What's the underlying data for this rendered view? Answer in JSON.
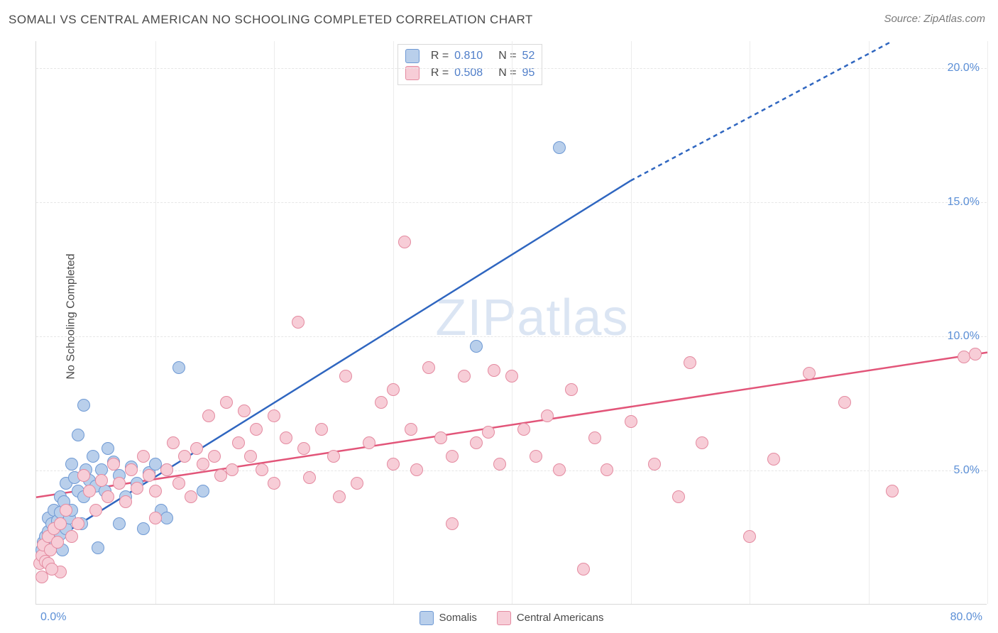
{
  "title": "SOMALI VS CENTRAL AMERICAN NO SCHOOLING COMPLETED CORRELATION CHART",
  "source_label": "Source: ZipAtlas.com",
  "y_axis_label": "No Schooling Completed",
  "watermark": "ZIPatlas",
  "chart": {
    "type": "scatter",
    "background_color": "#ffffff",
    "grid_color": "#e6e6e6",
    "axis_color": "#d9d9d9",
    "tick_label_color": "#5b8fd6",
    "xlim": [
      0,
      80
    ],
    "ylim": [
      0,
      21
    ],
    "x_ticks": {
      "positions": [
        0,
        10,
        20,
        30,
        40,
        50,
        60,
        70,
        80
      ],
      "labels": {
        "first": "0.0%",
        "last": "80.0%"
      }
    },
    "y_ticks": {
      "positions": [
        5,
        10,
        15,
        20
      ],
      "labels": [
        "5.0%",
        "10.0%",
        "15.0%",
        "20.0%"
      ]
    },
    "marker_radius": 9,
    "marker_border_width": 1.2,
    "line_width": 2.5,
    "series": [
      {
        "name": "Somalis",
        "fill_color": "#b9cfeb",
        "border_color": "#6e99d4",
        "line_color": "#2f66c0",
        "R": "0.810",
        "N": "52",
        "trend": {
          "x1": 0,
          "y1": 2.0,
          "x2_solid": 50,
          "y2_solid": 15.8,
          "x2_dash": 72,
          "y2_dash": 21.0
        },
        "points": [
          [
            0.5,
            2.0
          ],
          [
            0.6,
            2.3
          ],
          [
            0.8,
            2.5
          ],
          [
            0.8,
            2.0
          ],
          [
            1.0,
            2.7
          ],
          [
            1.0,
            3.2
          ],
          [
            1.2,
            2.4
          ],
          [
            1.3,
            3.0
          ],
          [
            1.5,
            2.7
          ],
          [
            1.5,
            3.5
          ],
          [
            1.6,
            2.2
          ],
          [
            1.8,
            3.1
          ],
          [
            2.0,
            2.6
          ],
          [
            2.0,
            3.4
          ],
          [
            2.0,
            4.0
          ],
          [
            2.2,
            2.0
          ],
          [
            2.3,
            3.8
          ],
          [
            2.5,
            4.5
          ],
          [
            2.5,
            2.8
          ],
          [
            2.8,
            3.2
          ],
          [
            3.0,
            5.2
          ],
          [
            3.0,
            3.5
          ],
          [
            3.2,
            4.7
          ],
          [
            3.5,
            4.2
          ],
          [
            3.5,
            6.3
          ],
          [
            3.8,
            3.0
          ],
          [
            4.0,
            4.0
          ],
          [
            4.0,
            7.4
          ],
          [
            4.2,
            5.0
          ],
          [
            4.5,
            4.6
          ],
          [
            4.8,
            5.5
          ],
          [
            5.0,
            4.4
          ],
          [
            5.2,
            2.1
          ],
          [
            5.5,
            5.0
          ],
          [
            5.8,
            4.2
          ],
          [
            6.0,
            5.8
          ],
          [
            6.5,
            5.3
          ],
          [
            7.0,
            4.8
          ],
          [
            7.0,
            3.0
          ],
          [
            7.5,
            4.0
          ],
          [
            8.0,
            5.1
          ],
          [
            8.5,
            4.5
          ],
          [
            9.0,
            2.8
          ],
          [
            9.5,
            4.9
          ],
          [
            10.0,
            5.2
          ],
          [
            10.5,
            3.5
          ],
          [
            11.0,
            5.0
          ],
          [
            11.0,
            3.2
          ],
          [
            12.0,
            8.8
          ],
          [
            14.0,
            4.2
          ],
          [
            37.0,
            9.6
          ],
          [
            44.0,
            17.0
          ]
        ]
      },
      {
        "name": "Central Americans",
        "fill_color": "#f7cdd7",
        "border_color": "#e48aa0",
        "line_color": "#e25579",
        "R": "0.508",
        "N": "95",
        "trend": {
          "x1": 0,
          "y1": 4.0,
          "x2_solid": 80,
          "y2_solid": 9.4
        },
        "points": [
          [
            0.3,
            1.5
          ],
          [
            0.5,
            1.8
          ],
          [
            0.6,
            2.2
          ],
          [
            0.8,
            1.6
          ],
          [
            1.0,
            2.5
          ],
          [
            1.2,
            2.0
          ],
          [
            1.5,
            2.8
          ],
          [
            1.8,
            2.3
          ],
          [
            2.0,
            3.0
          ],
          [
            2.0,
            1.2
          ],
          [
            0.5,
            1.0
          ],
          [
            1.0,
            1.5
          ],
          [
            1.3,
            1.3
          ],
          [
            2.5,
            3.5
          ],
          [
            3.0,
            2.5
          ],
          [
            3.5,
            3.0
          ],
          [
            4.0,
            4.8
          ],
          [
            4.5,
            4.2
          ],
          [
            5.0,
            3.5
          ],
          [
            5.5,
            4.6
          ],
          [
            6.0,
            4.0
          ],
          [
            6.5,
            5.2
          ],
          [
            7.0,
            4.5
          ],
          [
            7.5,
            3.8
          ],
          [
            8.0,
            5.0
          ],
          [
            8.5,
            4.3
          ],
          [
            9.0,
            5.5
          ],
          [
            9.5,
            4.8
          ],
          [
            10.0,
            4.2
          ],
          [
            10.0,
            3.2
          ],
          [
            11.0,
            5.0
          ],
          [
            11.5,
            6.0
          ],
          [
            12.0,
            4.5
          ],
          [
            12.5,
            5.5
          ],
          [
            13.0,
            4.0
          ],
          [
            13.5,
            5.8
          ],
          [
            14.0,
            5.2
          ],
          [
            14.5,
            7.0
          ],
          [
            15.0,
            5.5
          ],
          [
            15.5,
            4.8
          ],
          [
            16.0,
            7.5
          ],
          [
            16.5,
            5.0
          ],
          [
            17.0,
            6.0
          ],
          [
            17.5,
            7.2
          ],
          [
            18.0,
            5.5
          ],
          [
            18.5,
            6.5
          ],
          [
            19.0,
            5.0
          ],
          [
            20.0,
            7.0
          ],
          [
            20.0,
            4.5
          ],
          [
            21.0,
            6.2
          ],
          [
            22.0,
            10.5
          ],
          [
            22.5,
            5.8
          ],
          [
            23.0,
            4.7
          ],
          [
            24.0,
            6.5
          ],
          [
            25.0,
            5.5
          ],
          [
            26.0,
            8.5
          ],
          [
            27.0,
            4.5
          ],
          [
            28.0,
            6.0
          ],
          [
            29.0,
            7.5
          ],
          [
            30.0,
            5.2
          ],
          [
            30.0,
            8.0
          ],
          [
            31.0,
            13.5
          ],
          [
            31.5,
            6.5
          ],
          [
            32.0,
            5.0
          ],
          [
            33.0,
            8.8
          ],
          [
            34.0,
            6.2
          ],
          [
            35.0,
            5.5
          ],
          [
            35.0,
            3.0
          ],
          [
            36.0,
            8.5
          ],
          [
            37.0,
            6.0
          ],
          [
            38.0,
            6.4
          ],
          [
            38.5,
            8.7
          ],
          [
            39.0,
            5.2
          ],
          [
            40.0,
            8.5
          ],
          [
            41.0,
            6.5
          ],
          [
            42.0,
            5.5
          ],
          [
            43.0,
            7.0
          ],
          [
            44.0,
            5.0
          ],
          [
            45.0,
            8.0
          ],
          [
            46.0,
            1.3
          ],
          [
            47.0,
            6.2
          ],
          [
            50.0,
            6.8
          ],
          [
            52.0,
            5.2
          ],
          [
            54.0,
            4.0
          ],
          [
            55.0,
            9.0
          ],
          [
            56.0,
            6.0
          ],
          [
            60.0,
            2.5
          ],
          [
            62.0,
            5.4
          ],
          [
            65.0,
            8.6
          ],
          [
            68.0,
            7.5
          ],
          [
            72.0,
            4.2
          ],
          [
            78.0,
            9.2
          ],
          [
            79.0,
            9.3
          ],
          [
            48.0,
            5.0
          ],
          [
            25.5,
            4.0
          ]
        ]
      }
    ],
    "legend_bottom": [
      {
        "label": "Somalis",
        "fill": "#b9cfeb",
        "border": "#6e99d4"
      },
      {
        "label": "Central Americans",
        "fill": "#f7cdd7",
        "border": "#e48aa0"
      }
    ]
  }
}
